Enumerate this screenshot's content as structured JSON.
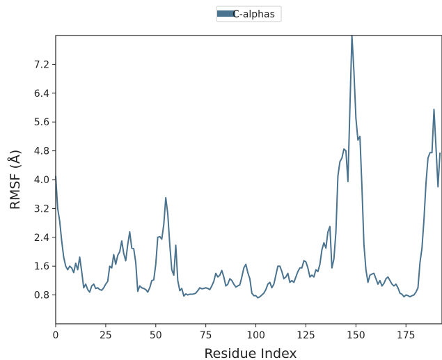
{
  "chart_data": {
    "type": "line",
    "xlabel": "Residue Index",
    "ylabel": "RMSF (Å)",
    "xlim": [
      0,
      193
    ],
    "ylim": [
      0.0,
      8.0
    ],
    "xticks": [
      0,
      25,
      50,
      75,
      100,
      125,
      150,
      175
    ],
    "yticks": [
      0.8,
      1.6,
      2.4,
      3.2,
      4.0,
      4.8,
      5.6,
      6.4,
      7.2
    ],
    "xtick_labels": [
      "0",
      "25",
      "50",
      "75",
      "100",
      "125",
      "150",
      "175"
    ],
    "ytick_labels": [
      "0.8",
      "1.6",
      "2.4",
      "3.2",
      "4.0",
      "4.8",
      "5.6",
      "6.4",
      "7.2"
    ],
    "grid": false,
    "legend_position": "top-center",
    "series": [
      {
        "name": "C-alphas",
        "color": "#4a7390",
        "x": [
          0,
          1,
          2,
          3,
          4,
          5,
          6,
          7,
          8,
          9,
          10,
          11,
          12,
          13,
          14,
          15,
          16,
          17,
          18,
          19,
          20,
          21,
          22,
          23,
          24,
          25,
          26,
          27,
          28,
          29,
          30,
          31,
          32,
          33,
          34,
          35,
          36,
          37,
          38,
          39,
          40,
          41,
          42,
          43,
          44,
          45,
          46,
          47,
          48,
          49,
          50,
          51,
          52,
          53,
          54,
          55,
          56,
          57,
          58,
          59,
          60,
          61,
          62,
          63,
          64,
          65,
          66,
          67,
          68,
          69,
          70,
          71,
          72,
          73,
          74,
          75,
          76,
          77,
          78,
          79,
          80,
          81,
          82,
          83,
          84,
          85,
          86,
          87,
          88,
          89,
          90,
          91,
          92,
          93,
          94,
          95,
          96,
          97,
          98,
          99,
          100,
          101,
          102,
          103,
          104,
          105,
          106,
          107,
          108,
          109,
          110,
          111,
          112,
          113,
          114,
          115,
          116,
          117,
          118,
          119,
          120,
          121,
          122,
          123,
          124,
          125,
          126,
          127,
          128,
          129,
          130,
          131,
          132,
          133,
          134,
          135,
          136,
          137,
          138,
          139,
          140,
          141,
          142,
          143,
          144,
          145,
          146,
          147,
          148,
          149,
          150,
          151,
          152,
          153,
          154,
          155,
          156,
          157,
          158,
          159,
          160,
          161,
          162,
          163,
          164,
          165,
          166,
          167,
          168,
          169,
          170,
          171,
          172,
          173,
          174,
          175,
          176,
          177,
          178,
          179,
          180,
          181,
          182,
          183,
          184,
          185,
          186,
          187,
          188,
          189,
          190,
          191,
          192
        ],
        "values": [
          4.1,
          3.2,
          2.85,
          2.3,
          1.85,
          1.6,
          1.5,
          1.6,
          1.55,
          1.42,
          1.68,
          1.5,
          1.85,
          1.45,
          1.0,
          1.1,
          0.95,
          0.88,
          1.05,
          1.1,
          0.98,
          1.0,
          0.95,
          0.93,
          1.0,
          1.1,
          1.18,
          1.6,
          1.55,
          1.92,
          1.65,
          1.9,
          2.0,
          2.3,
          1.95,
          1.75,
          2.2,
          2.55,
          2.1,
          2.08,
          1.7,
          0.9,
          1.05,
          1.0,
          0.98,
          0.95,
          0.88,
          1.0,
          1.2,
          1.22,
          1.65,
          2.4,
          2.42,
          2.35,
          2.75,
          3.5,
          3.05,
          2.2,
          1.5,
          1.35,
          2.18,
          1.2,
          0.92,
          0.98,
          0.77,
          0.83,
          0.8,
          0.82,
          0.82,
          0.83,
          0.85,
          0.92,
          1.0,
          0.97,
          0.98,
          1.0,
          0.98,
          0.95,
          1.05,
          1.18,
          1.4,
          1.3,
          1.35,
          1.48,
          1.3,
          1.05,
          1.1,
          1.25,
          1.2,
          1.1,
          1.02,
          1.05,
          1.08,
          1.3,
          1.55,
          1.65,
          1.42,
          1.25,
          0.85,
          0.78,
          0.78,
          0.72,
          0.75,
          0.8,
          0.85,
          0.95,
          1.1,
          1.15,
          1.0,
          1.1,
          1.35,
          1.6,
          1.6,
          1.45,
          1.25,
          1.3,
          1.4,
          1.15,
          1.2,
          1.15,
          1.3,
          1.45,
          1.55,
          1.55,
          1.75,
          1.72,
          1.55,
          1.3,
          1.35,
          1.3,
          1.5,
          1.45,
          1.65,
          2.05,
          2.25,
          2.1,
          2.55,
          2.7,
          1.55,
          1.8,
          2.55,
          4.1,
          4.5,
          4.6,
          4.85,
          4.8,
          3.95,
          6.0,
          8.0,
          7.0,
          5.7,
          5.1,
          5.2,
          3.8,
          2.2,
          1.5,
          1.15,
          1.35,
          1.38,
          1.4,
          1.25,
          1.1,
          1.2,
          1.05,
          1.12,
          1.25,
          1.3,
          1.2,
          1.1,
          1.05,
          1.1,
          1.0,
          0.85,
          0.82,
          0.75,
          0.8,
          0.78,
          0.75,
          0.78,
          0.8,
          0.88,
          1.0,
          1.7,
          2.1,
          2.9,
          3.9,
          4.6,
          4.75,
          4.75,
          5.95,
          4.9,
          3.8,
          4.75
        ]
      }
    ]
  }
}
